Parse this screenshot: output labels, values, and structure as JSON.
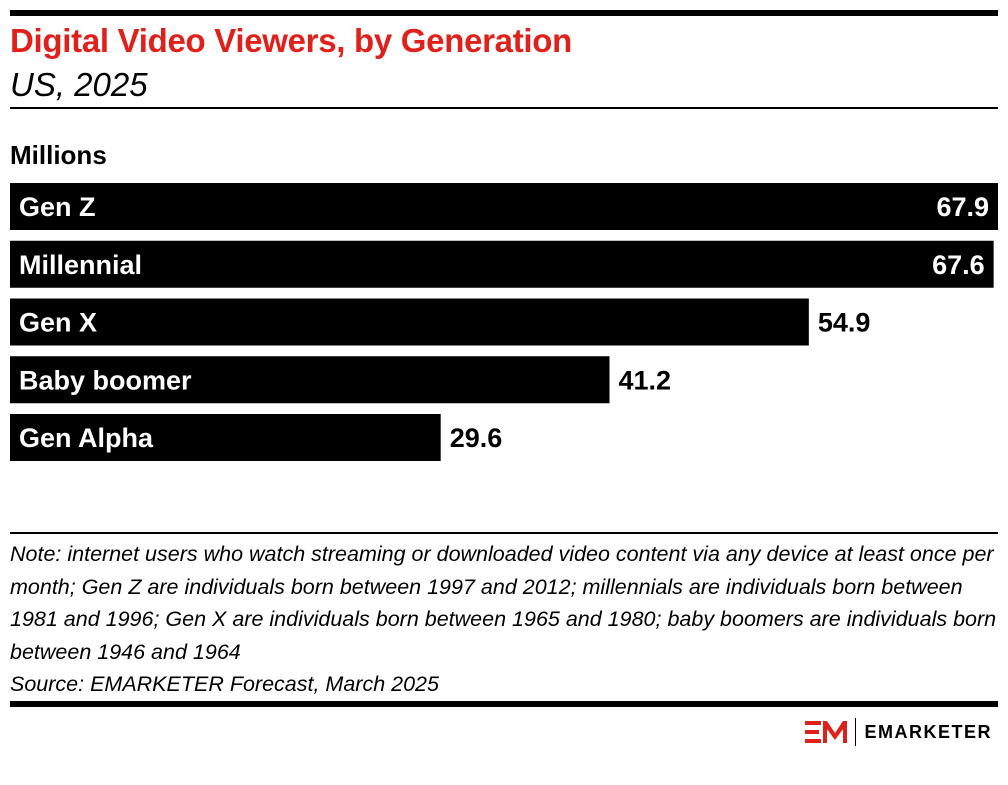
{
  "title": "Digital Video Viewers, by Generation",
  "subtitle": "US, 2025",
  "unit_label": "Millions",
  "notes": {
    "note": "Note: internet users who watch streaming or downloaded video content via any device at least once per month; Gen Z are individuals born between 1997 and 2012; millennials are individuals born between 1981 and 1996; Gen X are individuals born between 1965 and 1980; baby boomers are individuals born between 1946 and 1964",
    "source": "Source: EMARKETER Forecast, March 2025"
  },
  "brand": {
    "name": "EMARKETER",
    "logo_icon": "em-logo-icon",
    "logo_color": "#e0211b"
  },
  "colors": {
    "title": "#e0211b",
    "bar": "#000000",
    "bar_text": "#ffffff",
    "value_text": "#000000"
  },
  "chart_data": {
    "type": "bar",
    "orientation": "horizontal",
    "title": "Digital Video Viewers, by Generation",
    "subtitle": "US, 2025",
    "unit": "Millions",
    "categories": [
      "Gen Z",
      "Millennial",
      "Gen X",
      "Baby boomer",
      "Gen Alpha"
    ],
    "values": [
      67.9,
      67.6,
      54.9,
      41.2,
      29.6
    ],
    "value_labels": [
      "67.9",
      "67.6",
      "54.9",
      "41.2",
      "29.6"
    ],
    "xlim": [
      0,
      67.9
    ],
    "grid": false,
    "legend": "none"
  }
}
